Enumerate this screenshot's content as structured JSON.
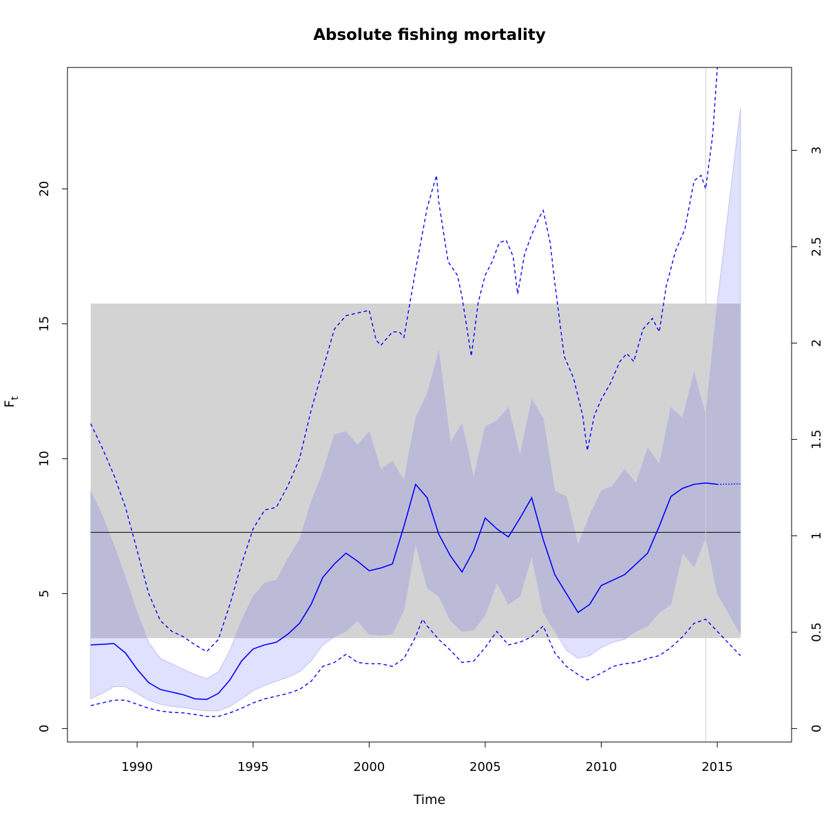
{
  "chart_data": {
    "type": "line",
    "title": "Absolute fishing mortality",
    "xlabel": "Time",
    "ylabel": "F",
    "ylabel_subscript": "t",
    "xlim": [
      1987,
      2018.2
    ],
    "ylim": [
      -0.5,
      24.5
    ],
    "y2lim": [
      -0.07,
      3.43
    ],
    "x_ticks": [
      "1990",
      "1995",
      "2000",
      "2005",
      "2010",
      "2015"
    ],
    "y_ticks": [
      "0",
      "5",
      "10",
      "15",
      "20"
    ],
    "y2_ticks": [
      "0",
      "0.5",
      "1",
      "1.5",
      "2",
      "2.5",
      "3"
    ],
    "colors": {
      "estimate": "#0000ff",
      "band": "#e0e0ff",
      "band_over_reference": "#bbbbd8",
      "reference_region": "#d3d3d3",
      "reference_line": "#000000",
      "forecast_marker": "#cccccc"
    },
    "reference_region": {
      "x_from": 1988,
      "x_to": 2016,
      "y_from": 3.35,
      "y_to": 15.75
    },
    "reference_line": {
      "y": 7.27,
      "x_from": 1988,
      "x_to": 2016
    },
    "forecast_marker_x": 2014.5,
    "series": [
      {
        "role": "estimate",
        "x": [
          1988,
          1988.5,
          1989,
          1989.5,
          1990,
          1990.5,
          1991,
          1991.5,
          1992,
          1992.5,
          1993,
          1993.5,
          1994,
          1994.5,
          1995,
          1995.5,
          1996,
          1996.5,
          1997,
          1997.5,
          1998,
          1998.5,
          1999,
          1999.5,
          2000,
          2000.5,
          2001,
          2001.5,
          2002,
          2002.5,
          2003,
          2003.5,
          2004,
          2004.5,
          2005,
          2005.5,
          2006,
          2006.5,
          2007,
          2007.5,
          2008,
          2008.5,
          2009,
          2009.5,
          2010,
          2010.5,
          2011,
          2011.5,
          2012,
          2012.5,
          2013,
          2013.5,
          2014,
          2014.5,
          2015
        ],
        "values": [
          3.1,
          3.12,
          3.15,
          2.8,
          2.2,
          1.7,
          1.45,
          1.35,
          1.25,
          1.1,
          1.08,
          1.3,
          1.8,
          2.5,
          2.95,
          3.1,
          3.2,
          3.5,
          3.9,
          4.6,
          5.6,
          6.1,
          6.5,
          6.2,
          5.85,
          5.95,
          6.1,
          7.5,
          9.05,
          8.55,
          7.2,
          6.4,
          5.8,
          6.6,
          7.8,
          7.4,
          7.1,
          7.8,
          8.55,
          7.0,
          5.7,
          5.0,
          4.3,
          4.6,
          5.3,
          5.5,
          5.7,
          6.1,
          6.5,
          7.5,
          8.6,
          8.9,
          9.05,
          9.1,
          9.05
        ]
      },
      {
        "role": "estimate_forecast",
        "x": [
          2015,
          2016
        ],
        "values": [
          9.05,
          9.07
        ]
      },
      {
        "role": "band_upper",
        "x": [
          1988,
          1988.5,
          1989,
          1989.5,
          1990,
          1990.5,
          1991,
          1991.5,
          1992,
          1992.5,
          1993,
          1993.5,
          1994,
          1994.5,
          1995,
          1995.5,
          1996,
          1996.5,
          1997,
          1997.5,
          1998,
          1998.5,
          1999,
          1999.5,
          2000,
          2000.5,
          2001,
          2001.5,
          2002,
          2002.5,
          2003,
          2003.5,
          2004,
          2004.5,
          2005,
          2005.5,
          2006,
          2006.5,
          2007,
          2007.5,
          2008,
          2008.5,
          2009,
          2009.5,
          2010,
          2010.5,
          2011,
          2011.5,
          2012,
          2012.5,
          2013,
          2013.5,
          2014,
          2014.5,
          2015,
          2016
        ],
        "values": [
          8.8,
          7.9,
          6.8,
          5.6,
          4.3,
          3.2,
          2.6,
          2.4,
          2.2,
          2.0,
          1.85,
          2.1,
          2.9,
          4.0,
          4.9,
          5.4,
          5.5,
          6.3,
          7.0,
          8.4,
          9.5,
          10.9,
          11.0,
          10.5,
          11.0,
          9.6,
          9.9,
          9.2,
          11.5,
          12.4,
          14.0,
          10.6,
          11.3,
          9.3,
          11.2,
          11.4,
          11.9,
          10.1,
          12.2,
          11.5,
          8.8,
          8.6,
          6.8,
          7.9,
          8.8,
          9.0,
          9.6,
          9.1,
          10.4,
          9.8,
          11.9,
          11.5,
          13.2,
          11.6,
          15.8,
          23.0
        ]
      },
      {
        "role": "band_lower",
        "x": [
          1988,
          1988.5,
          1989,
          1989.5,
          1990,
          1990.5,
          1991,
          1991.5,
          1992,
          1992.5,
          1993,
          1993.5,
          1994,
          1994.5,
          1995,
          1995.5,
          1996,
          1996.5,
          1997,
          1997.5,
          1998,
          1998.5,
          1999,
          1999.5,
          2000,
          2000.5,
          2001,
          2001.5,
          2002,
          2002.5,
          2003,
          2003.5,
          2004,
          2004.5,
          2005,
          2005.5,
          2006,
          2006.5,
          2007,
          2007.5,
          2008,
          2008.5,
          2009,
          2009.5,
          2010,
          2010.5,
          2011,
          2011.5,
          2012,
          2012.5,
          2013,
          2013.5,
          2014,
          2014.5,
          2015,
          2016
        ],
        "values": [
          1.1,
          1.3,
          1.55,
          1.55,
          1.3,
          1.05,
          0.9,
          0.82,
          0.78,
          0.7,
          0.65,
          0.65,
          0.82,
          1.1,
          1.4,
          1.6,
          1.75,
          1.9,
          2.1,
          2.5,
          3.1,
          3.4,
          3.6,
          4.0,
          3.5,
          3.45,
          3.5,
          4.4,
          6.85,
          5.2,
          4.9,
          4.0,
          3.6,
          3.65,
          4.2,
          5.4,
          4.6,
          4.9,
          6.4,
          4.3,
          3.6,
          2.9,
          2.6,
          2.7,
          3.0,
          3.2,
          3.3,
          3.6,
          3.8,
          4.3,
          4.6,
          6.5,
          6.0,
          7.1,
          5.0,
          3.5
        ]
      },
      {
        "role": "ci_upper_dashed",
        "x": [
          1988,
          1988.5,
          1989,
          1989.5,
          1990,
          1990.5,
          1991,
          1991.5,
          1992,
          1992.5,
          1993,
          1993.5,
          1994,
          1994.5,
          1995,
          1995.5,
          1996,
          1996.5,
          1997,
          1997.5,
          1998,
          1998.5,
          1999,
          1999.5,
          2000,
          2000.3,
          2000.5,
          2001,
          2001.3,
          2001.5,
          2002,
          2002.5,
          2002.9,
          2003,
          2003.4,
          2003.8,
          2004,
          2004.4,
          2004.7,
          2005,
          2005.3,
          2005.6,
          2005.9,
          2006.2,
          2006.4,
          2006.7,
          2007,
          2007.3,
          2007.5,
          2007.8,
          2008,
          2008.4,
          2008.8,
          2009.2,
          2009.4,
          2009.7,
          2010,
          2010.4,
          2010.8,
          2011.1,
          2011.4,
          2011.8,
          2012.2,
          2012.5,
          2012.8,
          2013.2,
          2013.6,
          2014,
          2014.3,
          2014.5,
          2014.8,
          2015
        ],
        "values": [
          11.3,
          10.4,
          9.4,
          8.2,
          6.6,
          5.0,
          4.0,
          3.6,
          3.4,
          3.1,
          2.85,
          3.3,
          4.6,
          6.1,
          7.4,
          8.1,
          8.2,
          9.0,
          10.0,
          11.8,
          13.3,
          14.8,
          15.3,
          15.4,
          15.5,
          14.4,
          14.2,
          14.7,
          14.7,
          14.5,
          17.0,
          19.3,
          20.5,
          19.5,
          17.3,
          16.8,
          16.0,
          13.8,
          15.8,
          16.8,
          17.3,
          18.0,
          18.1,
          17.5,
          16.1,
          17.6,
          18.3,
          18.9,
          19.2,
          18.0,
          16.5,
          13.8,
          13.0,
          11.6,
          10.3,
          11.6,
          12.2,
          12.8,
          13.6,
          13.9,
          13.6,
          14.8,
          15.2,
          14.7,
          16.4,
          17.7,
          18.5,
          20.3,
          20.5,
          20.0,
          22.0,
          24.5
        ]
      },
      {
        "role": "ci_lower_dashed",
        "x": [
          1988,
          1988.5,
          1989,
          1989.5,
          1990,
          1990.5,
          1991,
          1991.5,
          1992,
          1992.5,
          1993,
          1993.5,
          1994,
          1994.5,
          1995,
          1995.5,
          1996,
          1996.5,
          1997,
          1997.5,
          1998,
          1998.5,
          1999,
          1999.5,
          2000,
          2000.5,
          2001,
          2001.5,
          2002,
          2002.3,
          2002.5,
          2003,
          2003.5,
          2004,
          2004.5,
          2005,
          2005.5,
          2006,
          2006.5,
          2007,
          2007.5,
          2008,
          2008.5,
          2009,
          2009.4,
          2010,
          2010.5,
          2011,
          2011.5,
          2012,
          2012.5,
          2013,
          2013.5,
          2014,
          2014.5,
          2015,
          2016
        ],
        "values": [
          0.85,
          0.95,
          1.05,
          1.05,
          0.9,
          0.75,
          0.65,
          0.6,
          0.58,
          0.52,
          0.45,
          0.45,
          0.58,
          0.75,
          0.95,
          1.1,
          1.2,
          1.3,
          1.45,
          1.75,
          2.3,
          2.45,
          2.75,
          2.45,
          2.4,
          2.4,
          2.3,
          2.6,
          3.4,
          4.05,
          3.8,
          3.3,
          2.9,
          2.45,
          2.5,
          3.0,
          3.6,
          3.1,
          3.2,
          3.4,
          3.8,
          2.8,
          2.3,
          2.0,
          1.8,
          2.05,
          2.3,
          2.4,
          2.45,
          2.6,
          2.7,
          3.0,
          3.4,
          3.9,
          4.05,
          3.6,
          2.7
        ]
      }
    ]
  }
}
